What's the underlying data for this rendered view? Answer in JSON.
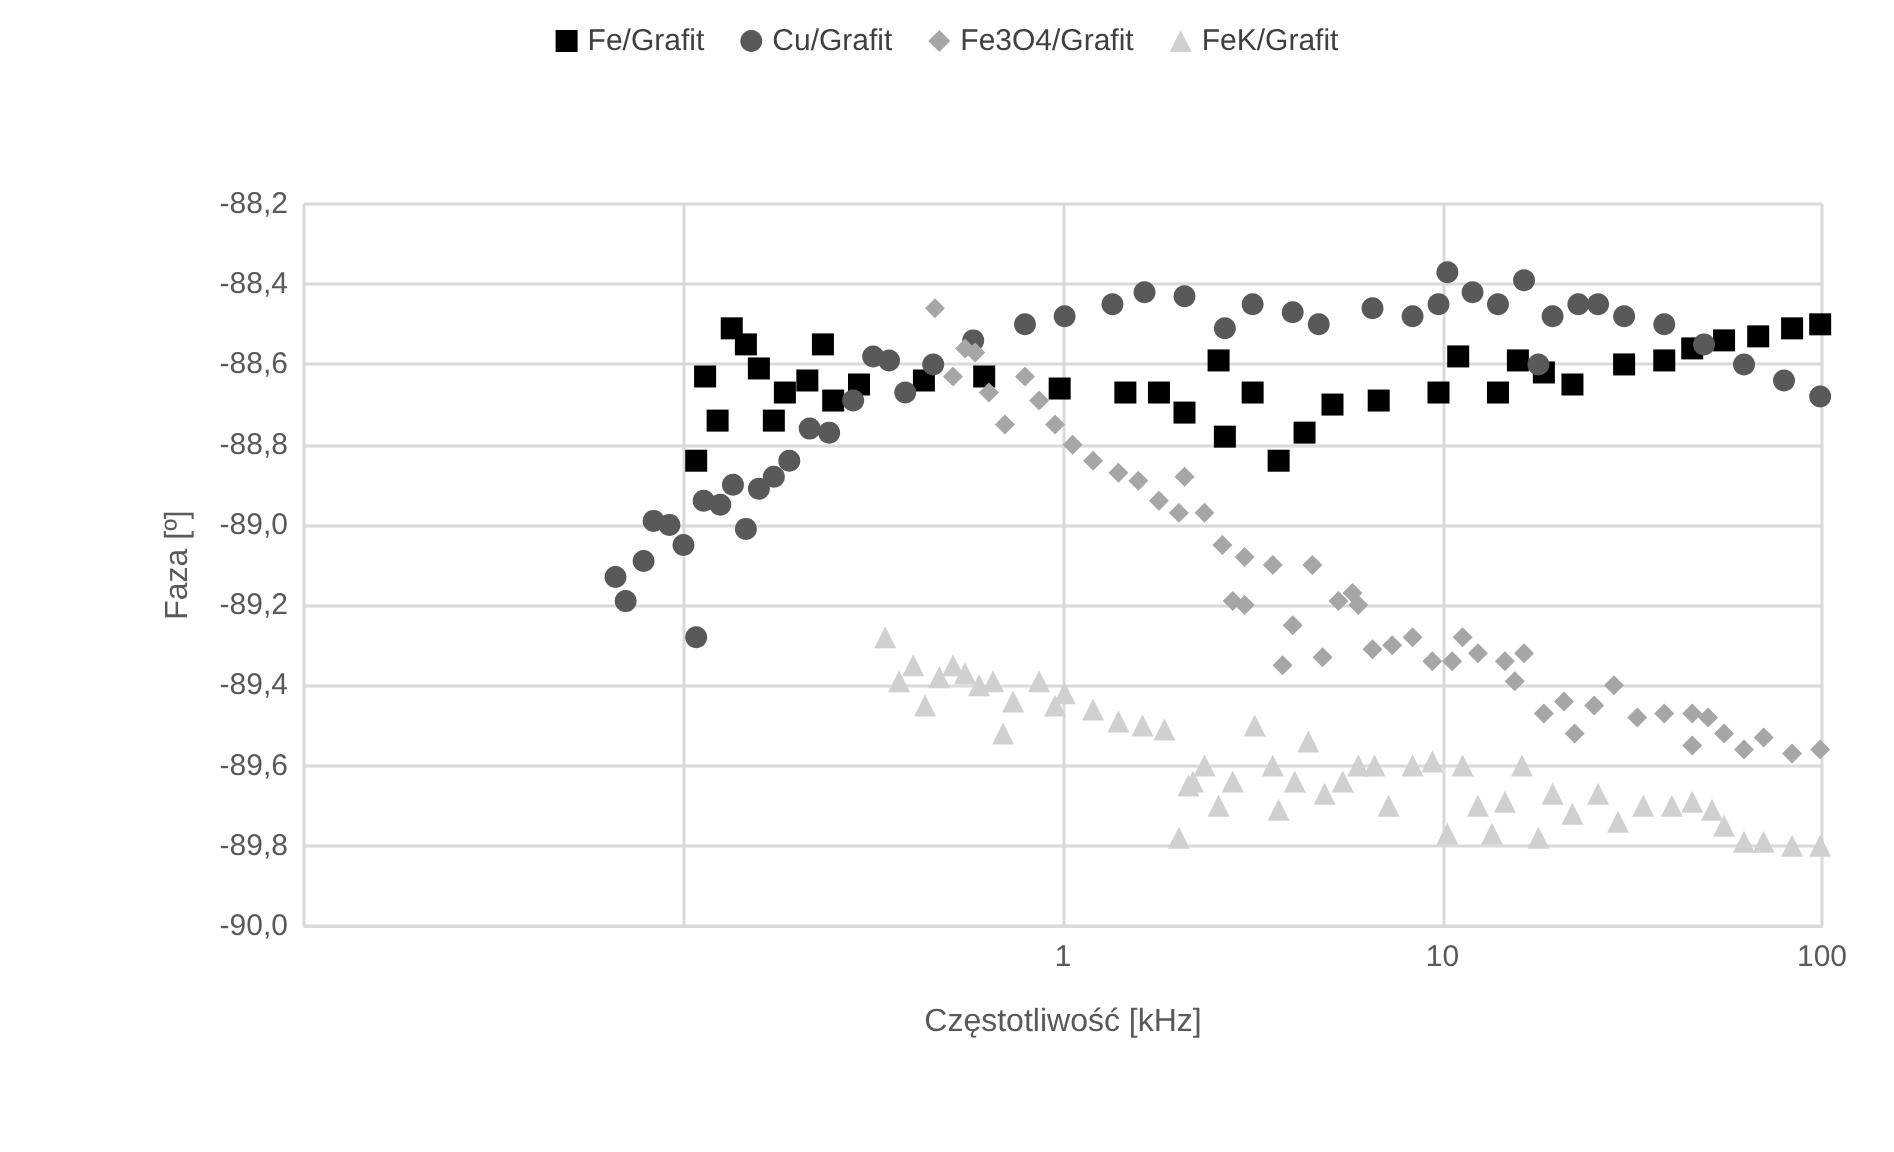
{
  "chart_data": {
    "type": "scatter",
    "xlabel": "Częstotliwość [kHz]",
    "ylabel": "Faza [º]",
    "log": "x",
    "grid": true,
    "legend": "top",
    "xlim": [
      0.01,
      100
    ],
    "xticks": [
      {
        "value": 0.01,
        "label": null
      },
      {
        "value": 0.1,
        "label": null
      },
      1,
      10,
      100
    ],
    "ylim": [
      -90,
      -88.2
    ],
    "yticks": [
      {
        "value": -90,
        "label": "-90,0"
      },
      {
        "value": -89.8,
        "label": "-89,8"
      },
      {
        "value": -89.6,
        "label": "-89,6"
      },
      {
        "value": -89.4,
        "label": "-89,4"
      },
      {
        "value": -89.2,
        "label": "-89,2"
      },
      {
        "value": -89,
        "label": "-89,0"
      },
      {
        "value": -88.8,
        "label": "-88,8"
      },
      {
        "value": -88.6,
        "label": "-88,6"
      },
      {
        "value": -88.4,
        "label": "-88,4"
      },
      {
        "value": -88.2,
        "label": "-88,2"
      }
    ],
    "series": [
      {
        "name": "Fe/Grafit",
        "color": "#000000",
        "marker": "square",
        "x": [
          0.108,
          0.114,
          0.123,
          0.134,
          0.146,
          0.158,
          0.173,
          0.185,
          0.212,
          0.233,
          0.248,
          0.29,
          0.43,
          0.62,
          0.98,
          1.46,
          1.79,
          2.09,
          2.57,
          2.67,
          3.16,
          3.7,
          4.33,
          5.13,
          6.79,
          9.76,
          11,
          14,
          15.8,
          18.5,
          22,
          30.1,
          38.4,
          45.5,
          55.2,
          67.9,
          83.4,
          98.9
        ],
        "values": [
          -88.84,
          -88.63,
          -88.74,
          -88.51,
          -88.55,
          -88.61,
          -88.74,
          -88.67,
          -88.64,
          -88.55,
          -88.69,
          -88.65,
          -88.64,
          -88.63,
          -88.66,
          -88.67,
          -88.67,
          -88.72,
          -88.59,
          -88.78,
          -88.67,
          -88.84,
          -88.77,
          -88.7,
          -88.69,
          -88.67,
          -88.58,
          -88.67,
          -88.59,
          -88.62,
          -88.65,
          -88.6,
          -88.59,
          -88.56,
          -88.54,
          -88.53,
          -88.51,
          -88.5
        ]
      },
      {
        "name": "Cu/Grafit",
        "color": "#595959",
        "marker": "circle",
        "x": [
          0.0662,
          0.0704,
          0.0785,
          0.0834,
          0.0918,
          0.1,
          0.108,
          0.113,
          0.125,
          0.135,
          0.146,
          0.158,
          0.173,
          0.19,
          0.215,
          0.242,
          0.28,
          0.316,
          0.348,
          0.384,
          0.455,
          0.58,
          0.794,
          1.01,
          1.35,
          1.64,
          2.09,
          2.67,
          3.16,
          4.03,
          4.72,
          6.54,
          8.34,
          9.76,
          10.3,
          12,
          14,
          16.4,
          17.9,
          19.5,
          22.8,
          25.7,
          30.1,
          38.4,
          48.9,
          62.3,
          79.4,
          98.9
        ],
        "values": [
          -89.13,
          -89.19,
          -89.09,
          -88.99,
          -89,
          -89.05,
          -89.28,
          -88.94,
          -88.95,
          -88.9,
          -89.01,
          -88.91,
          -88.88,
          -88.84,
          -88.76,
          -88.77,
          -88.69,
          -88.58,
          -88.59,
          -88.67,
          -88.6,
          -88.54,
          -88.5,
          -88.48,
          -88.45,
          -88.42,
          -88.43,
          -88.51,
          -88.45,
          -88.47,
          -88.5,
          -88.46,
          -88.48,
          -88.45,
          -88.37,
          -88.42,
          -88.45,
          -88.39,
          -88.6,
          -88.48,
          -88.45,
          -88.45,
          -88.48,
          -88.5,
          -88.55,
          -88.6,
          -88.64,
          -88.68
        ]
      },
      {
        "name": "Fe3O4/Grafit",
        "color": "#a6a6a6",
        "marker": "diamond",
        "x": [
          0.46,
          0.513,
          0.552,
          0.587,
          0.638,
          0.703,
          0.794,
          0.865,
          0.953,
          1.06,
          1.2,
          1.4,
          1.58,
          1.79,
          2.02,
          2.09,
          2.36,
          2.63,
          2.8,
          3.01,
          3.01,
          3.57,
          3.79,
          4.03,
          4.54,
          4.83,
          5.32,
          5.79,
          6,
          6.54,
          7.37,
          8.34,
          9.4,
          10.6,
          11.3,
          12.4,
          14.6,
          15.5,
          16.4,
          18.5,
          20.9,
          22.3,
          25.1,
          28.3,
          32.6,
          38.4,
          45.5,
          45.5,
          50.1,
          55.2,
          62.3,
          70.2,
          83.4,
          98.9
        ],
        "values": [
          -88.46,
          -88.63,
          -88.56,
          -88.57,
          -88.67,
          -88.75,
          -88.63,
          -88.69,
          -88.75,
          -88.8,
          -88.84,
          -88.87,
          -88.89,
          -88.94,
          -88.97,
          -88.88,
          -88.97,
          -89.05,
          -89.19,
          -89.08,
          -89.2,
          -89.1,
          -89.35,
          -89.25,
          -89.1,
          -89.33,
          -89.19,
          -89.17,
          -89.2,
          -89.31,
          -89.3,
          -89.28,
          -89.34,
          -89.34,
          -89.28,
          -89.32,
          -89.34,
          -89.39,
          -89.32,
          -89.47,
          -89.44,
          -89.52,
          -89.45,
          -89.4,
          -89.48,
          -89.47,
          -89.47,
          -89.55,
          -89.48,
          -89.52,
          -89.56,
          -89.53,
          -89.57,
          -89.56
        ]
      },
      {
        "name": "FeK/Grafit",
        "color": "#d0d0d0",
        "marker": "triangle",
        "x": [
          0.34,
          0.37,
          0.403,
          0.433,
          0.472,
          0.513,
          0.552,
          0.601,
          0.654,
          0.695,
          0.739,
          0.865,
          0.953,
          1.01,
          1.2,
          1.4,
          1.62,
          1.85,
          2.02,
          2.14,
          2.2,
          2.36,
          2.57,
          2.8,
          3.2,
          3.57,
          3.7,
          4.08,
          4.43,
          4.89,
          5.46,
          6,
          6.62,
          7.21,
          8.34,
          9.4,
          10.3,
          11.3,
          12.4,
          13.5,
          14.6,
          16.2,
          17.9,
          19.5,
          22,
          25.7,
          29,
          33.8,
          40.2,
          45.5,
          51.3,
          55.2,
          62.3,
          70.2,
          83.4,
          98.9
        ],
        "values": [
          -89.28,
          -89.39,
          -89.35,
          -89.45,
          -89.38,
          -89.35,
          -89.37,
          -89.4,
          -89.39,
          -89.52,
          -89.44,
          -89.39,
          -89.45,
          -89.42,
          -89.46,
          -89.49,
          -89.5,
          -89.51,
          -89.78,
          -89.65,
          -89.64,
          -89.6,
          -89.7,
          -89.64,
          -89.5,
          -89.6,
          -89.71,
          -89.64,
          -89.54,
          -89.67,
          -89.64,
          -89.6,
          -89.6,
          -89.7,
          -89.6,
          -89.59,
          -89.77,
          -89.6,
          -89.7,
          -89.77,
          -89.69,
          -89.6,
          -89.78,
          -89.67,
          -89.72,
          -89.67,
          -89.74,
          -89.7,
          -89.7,
          -89.69,
          -89.71,
          -89.75,
          -89.79,
          -89.79,
          -89.8,
          -89.8
        ]
      }
    ]
  }
}
